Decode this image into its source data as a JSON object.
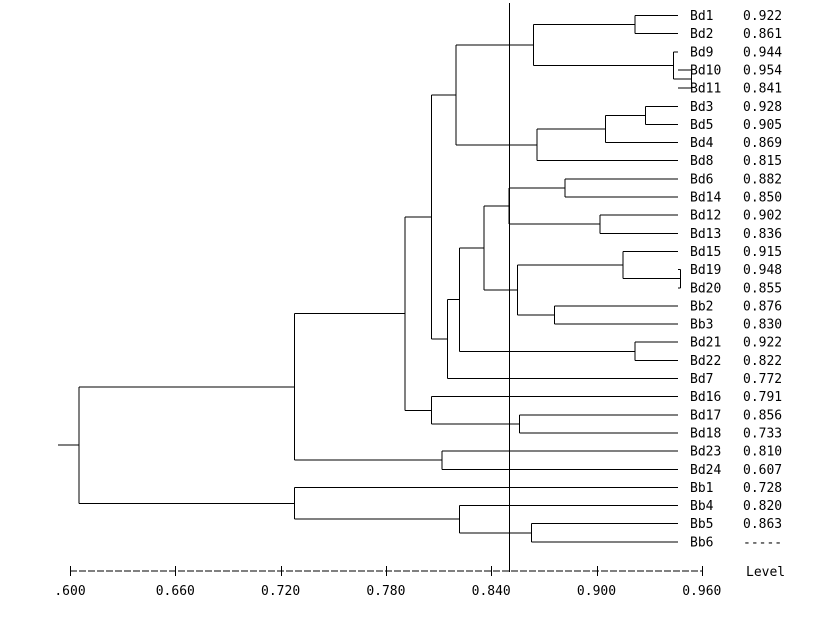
{
  "leaves": [
    {
      "name": "Bd1",
      "value": "0.922"
    },
    {
      "name": "Bd2",
      "value": "0.861"
    },
    {
      "name": "Bd9",
      "value": "0.944"
    },
    {
      "name": "Bd10",
      "value": "0.954"
    },
    {
      "name": "Bd11",
      "value": "0.841"
    },
    {
      "name": "Bd3",
      "value": "0.928"
    },
    {
      "name": "Bd5",
      "value": "0.905"
    },
    {
      "name": "Bd4",
      "value": "0.869"
    },
    {
      "name": "Bd8",
      "value": "0.815"
    },
    {
      "name": "Bd6",
      "value": "0.882"
    },
    {
      "name": "Bd14",
      "value": "0.850"
    },
    {
      "name": "Bd12",
      "value": "0.902"
    },
    {
      "name": "Bd13",
      "value": "0.836"
    },
    {
      "name": "Bd15",
      "value": "0.915"
    },
    {
      "name": "Bd19",
      "value": "0.948"
    },
    {
      "name": "Bd20",
      "value": "0.855"
    },
    {
      "name": "Bb2",
      "value": "0.876"
    },
    {
      "name": "Bb3",
      "value": "0.830"
    },
    {
      "name": "Bd21",
      "value": "0.922"
    },
    {
      "name": "Bd22",
      "value": "0.822"
    },
    {
      "name": "Bd7",
      "value": "0.772"
    },
    {
      "name": "Bd16",
      "value": "0.791"
    },
    {
      "name": "Bd17",
      "value": "0.856"
    },
    {
      "name": "Bd18",
      "value": "0.733"
    },
    {
      "name": "Bd23",
      "value": "0.810"
    },
    {
      "name": "Bd24",
      "value": "0.607"
    },
    {
      "name": "Bb1",
      "value": "0.728"
    },
    {
      "name": "Bb4",
      "value": "0.820"
    },
    {
      "name": "Bb5",
      "value": "0.863"
    },
    {
      "name": "Bb6",
      "value": "-----"
    }
  ],
  "axis": {
    "ticks": [
      ".600",
      "0.660",
      "0.720",
      "0.780",
      "0.840",
      "0.900",
      "0.960"
    ],
    "level_label": "Level",
    "cutoff": 0.85
  },
  "tree": {
    "h": 0.605,
    "c": [
      {
        "h": 0.728,
        "c": [
          {
            "h": 0.791,
            "c": [
              {
                "h": 0.806,
                "c": [
                  {
                    "h": 0.82,
                    "c": [
                      {
                        "h": 0.864,
                        "c": [
                          {
                            "h": 0.922,
                            "c": [
                              {
                                "leaf": 0
                              },
                              {
                                "leaf": 1
                              }
                            ]
                          },
                          {
                            "h": 0.944,
                            "c": [
                              {
                                "leaf": 2
                              },
                              {
                                "h": 0.954,
                                "c": [
                                  {
                                    "leaf": 3
                                  },
                                  {
                                    "leaf": 4
                                  }
                                ]
                              }
                            ]
                          }
                        ]
                      },
                      {
                        "h": 0.866,
                        "c": [
                          {
                            "h": 0.905,
                            "c": [
                              {
                                "h": 0.928,
                                "c": [
                                  {
                                    "leaf": 5
                                  },
                                  {
                                    "leaf": 6
                                  }
                                ]
                              },
                              {
                                "leaf": 7
                              }
                            ]
                          },
                          {
                            "leaf": 8
                          }
                        ]
                      }
                    ]
                  },
                  {
                    "h": 0.815,
                    "c": [
                      {
                        "h": 0.822,
                        "c": [
                          {
                            "h": 0.836,
                            "c": [
                              {
                                "h": 0.85,
                                "c": [
                                  {
                                    "h": 0.882,
                                    "c": [
                                      {
                                        "leaf": 9
                                      },
                                      {
                                        "leaf": 10
                                      }
                                    ]
                                  },
                                  {
                                    "h": 0.902,
                                    "c": [
                                      {
                                        "leaf": 11
                                      },
                                      {
                                        "leaf": 12
                                      }
                                    ]
                                  }
                                ]
                              },
                              {
                                "h": 0.855,
                                "c": [
                                  {
                                    "h": 0.915,
                                    "c": [
                                      {
                                        "leaf": 13
                                      },
                                      {
                                        "h": 0.948,
                                        "c": [
                                          {
                                            "leaf": 14
                                          },
                                          {
                                            "leaf": 15
                                          }
                                        ]
                                      }
                                    ]
                                  },
                                  {
                                    "h": 0.876,
                                    "c": [
                                      {
                                        "leaf": 16
                                      },
                                      {
                                        "leaf": 17
                                      }
                                    ]
                                  }
                                ]
                              }
                            ]
                          },
                          {
                            "h": 0.922,
                            "c": [
                              {
                                "leaf": 18
                              },
                              {
                                "leaf": 19
                              }
                            ]
                          }
                        ]
                      },
                      {
                        "leaf": 20
                      }
                    ]
                  }
                ]
              },
              {
                "h": 0.806,
                "c": [
                  {
                    "leaf": 21
                  },
                  {
                    "h": 0.856,
                    "c": [
                      {
                        "leaf": 22
                      },
                      {
                        "leaf": 23
                      }
                    ]
                  }
                ]
              }
            ]
          },
          {
            "h": 0.812,
            "c": [
              {
                "leaf": 24
              },
              {
                "leaf": 25
              }
            ]
          }
        ]
      },
      {
        "h": 0.728,
        "c": [
          {
            "leaf": 26
          },
          {
            "h": 0.822,
            "c": [
              {
                "leaf": 27
              },
              {
                "h": 0.863,
                "c": [
                  {
                    "leaf": 28
                  },
                  {
                    "leaf": 29
                  }
                ]
              }
            ]
          }
        ]
      }
    ]
  }
}
